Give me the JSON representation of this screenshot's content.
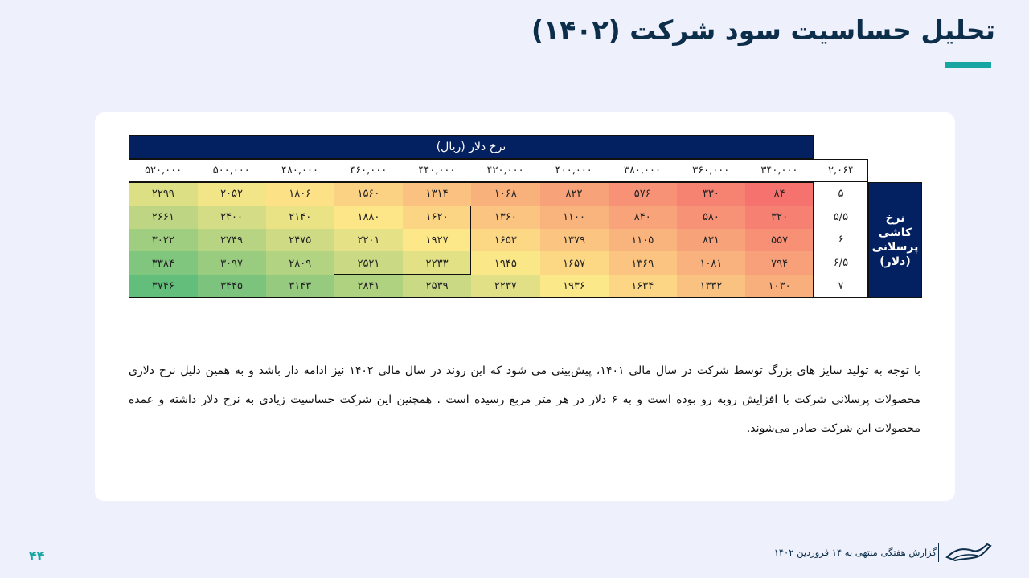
{
  "title": "تحلیل حساسیت سود شرکت (۱۴۰۲)",
  "table": {
    "band_label": "نرخ دلار (ریال)",
    "corner_value": "۲,۰۶۴",
    "row_axis_label_lines": [
      "نرخ کاشی",
      "پرسلانی",
      "(دلار)"
    ],
    "columns": [
      "۳۴۰,۰۰۰",
      "۳۶۰,۰۰۰",
      "۳۸۰,۰۰۰",
      "۴۰۰,۰۰۰",
      "۴۲۰,۰۰۰",
      "۴۴۰,۰۰۰",
      "۴۶۰,۰۰۰",
      "۴۸۰,۰۰۰",
      "۵۰۰,۰۰۰",
      "۵۲۰,۰۰۰"
    ],
    "rows": [
      {
        "label": "۵",
        "values": [
          "۸۴",
          "۳۳۰",
          "۵۷۶",
          "۸۲۲",
          "۱۰۶۸",
          "۱۳۱۴",
          "۱۵۶۰",
          "۱۸۰۶",
          "۲۰۵۲",
          "۲۲۹۹"
        ]
      },
      {
        "label": "۵/۵",
        "values": [
          "۳۲۰",
          "۵۸۰",
          "۸۴۰",
          "۱۱۰۰",
          "۱۳۶۰",
          "۱۶۲۰",
          "۱۸۸۰",
          "۲۱۴۰",
          "۲۴۰۰",
          "۲۶۶۱"
        ]
      },
      {
        "label": "۶",
        "values": [
          "۵۵۷",
          "۸۳۱",
          "۱۱۰۵",
          "۱۳۷۹",
          "۱۶۵۳",
          "۱۹۲۷",
          "۲۲۰۱",
          "۲۴۷۵",
          "۲۷۴۹",
          "۳۰۲۲"
        ]
      },
      {
        "label": "۶/۵",
        "values": [
          "۷۹۴",
          "۱۰۸۱",
          "۱۳۶۹",
          "۱۶۵۷",
          "۱۹۴۵",
          "۲۲۳۳",
          "۲۵۲۱",
          "۲۸۰۹",
          "۳۰۹۷",
          "۳۳۸۴"
        ]
      },
      {
        "label": "۷",
        "values": [
          "۱۰۳۰",
          "۱۳۳۲",
          "۱۶۳۴",
          "۱۹۳۶",
          "۲۲۳۷",
          "۲۵۳۹",
          "۲۸۴۱",
          "۳۱۴۳",
          "۳۴۴۵",
          "۳۷۴۶"
        ]
      }
    ],
    "numeric_values": [
      [
        84,
        330,
        576,
        822,
        1068,
        1314,
        1560,
        1806,
        2052,
        2299
      ],
      [
        320,
        580,
        840,
        1100,
        1360,
        1620,
        1880,
        2140,
        2400,
        2661
      ],
      [
        557,
        831,
        1105,
        1379,
        1653,
        1927,
        2201,
        2475,
        2749,
        3022
      ],
      [
        794,
        1081,
        1369,
        1657,
        1945,
        2233,
        2521,
        2809,
        3097,
        3384
      ],
      [
        1030,
        1332,
        1634,
        1936,
        2237,
        2539,
        2841,
        3143,
        3445,
        3746
      ]
    ],
    "colors": {
      "low": "#f5726f",
      "mid": "#fde888",
      "high": "#63bd7b",
      "header_bg": "#032061"
    }
  },
  "paragraph": "با توجه به تولید سایز های بزرگ توسط شرکت در سال مالی ۱۴۰۱، پیش‌بینی می شود که این روند در سال مالی ۱۴۰۲ نیز ادامه دار باشد و به همین دلیل نرخ دلاری محصولات پرسلانی شرکت با افزایش روبه رو بوده است و به ۶ دلار در هر متر مربع رسیده است . همچنین این شرکت حساسیت زیادی به نرخ دلار داشته و عمده محصولات این شرکت صادر می‌شوند.",
  "footer": {
    "report_text": "گزارش هفتگی منتهی به ۱۴ فروردین ۱۴۰۲",
    "page_number": "۴۴"
  }
}
